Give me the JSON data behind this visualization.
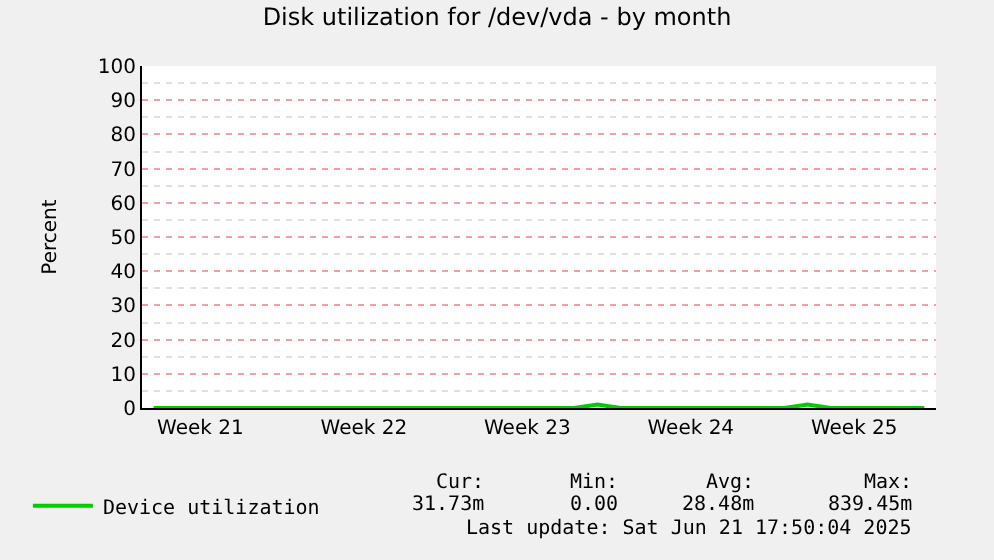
{
  "chart_data": {
    "type": "line",
    "title": "Disk utilization for /dev/vda - by month",
    "ylabel": "Percent",
    "categories": [
      null,
      null,
      "Week 21",
      null,
      null,
      null,
      null,
      null,
      null,
      "Week 22",
      null,
      null,
      null,
      null,
      null,
      null,
      "Week 23",
      null,
      null,
      null,
      null,
      null,
      null,
      "Week 24",
      null,
      null,
      null,
      null,
      null,
      null,
      "Week 25",
      null,
      null,
      null
    ],
    "ylim": [
      0,
      100
    ],
    "yticks": [
      0,
      10,
      20,
      30,
      40,
      50,
      60,
      70,
      80,
      90,
      100
    ],
    "grid": "y",
    "legend": "bottom",
    "marker": "none",
    "line_style": "solid",
    "series": [
      {
        "name": "Device utilization",
        "color": "#00cc00",
        "values": [
          0,
          0,
          0,
          0,
          0,
          0,
          0,
          0,
          0,
          0,
          0,
          0,
          0,
          0,
          0,
          0,
          0,
          0,
          0,
          1,
          0,
          0,
          0,
          0,
          0,
          0,
          0,
          0,
          1,
          0,
          0,
          0,
          0,
          0
        ]
      }
    ],
    "annotations": [
      "Cur:",
      "Min:",
      "Avg:",
      "Max:",
      "31.73m",
      "0.00",
      "28.48m",
      "839.45m",
      "Last update: Sat Jun 21 17:50:04 2025"
    ]
  }
}
